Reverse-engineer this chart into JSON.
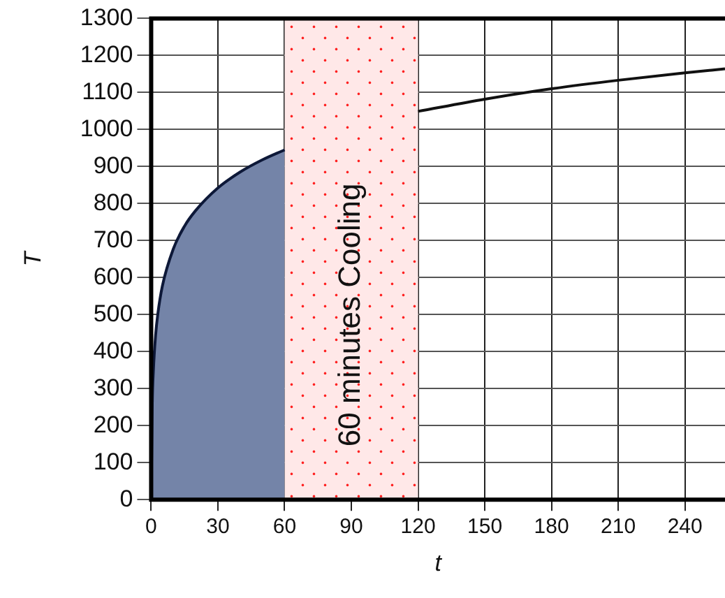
{
  "chart_data": {
    "type": "line",
    "xlabel": "t",
    "ylabel": "T",
    "series": [
      {
        "type": "area",
        "color": "#7484a8",
        "x": [
          0,
          0.5,
          1,
          2,
          3,
          5,
          10,
          15,
          20,
          30,
          40,
          50,
          60
        ],
        "values": [
          0,
          260,
          349,
          445,
          502,
          576,
          678,
          739,
          781,
          842,
          885,
          918,
          945
        ]
      },
      {
        "type": "line",
        "color": "#111111",
        "x": [
          120,
          150,
          180,
          210,
          240,
          258
        ],
        "values": [
          1049,
          1082,
          1110,
          1133,
          1153,
          1164
        ]
      }
    ],
    "bands": [
      {
        "axis": "x",
        "from": 60,
        "to": 120,
        "label": "60 minutes Cooling",
        "color": "#ff2020"
      }
    ],
    "xlim": [
      0,
      258
    ],
    "xticks": [
      0,
      30,
      60,
      90,
      120,
      150,
      180,
      210,
      240
    ],
    "ylim": [
      0,
      1300
    ],
    "yticks": [
      0,
      100,
      200,
      300,
      400,
      500,
      600,
      700,
      800,
      900,
      1000,
      1100,
      1200,
      1300
    ],
    "grid": true,
    "legend": false
  }
}
